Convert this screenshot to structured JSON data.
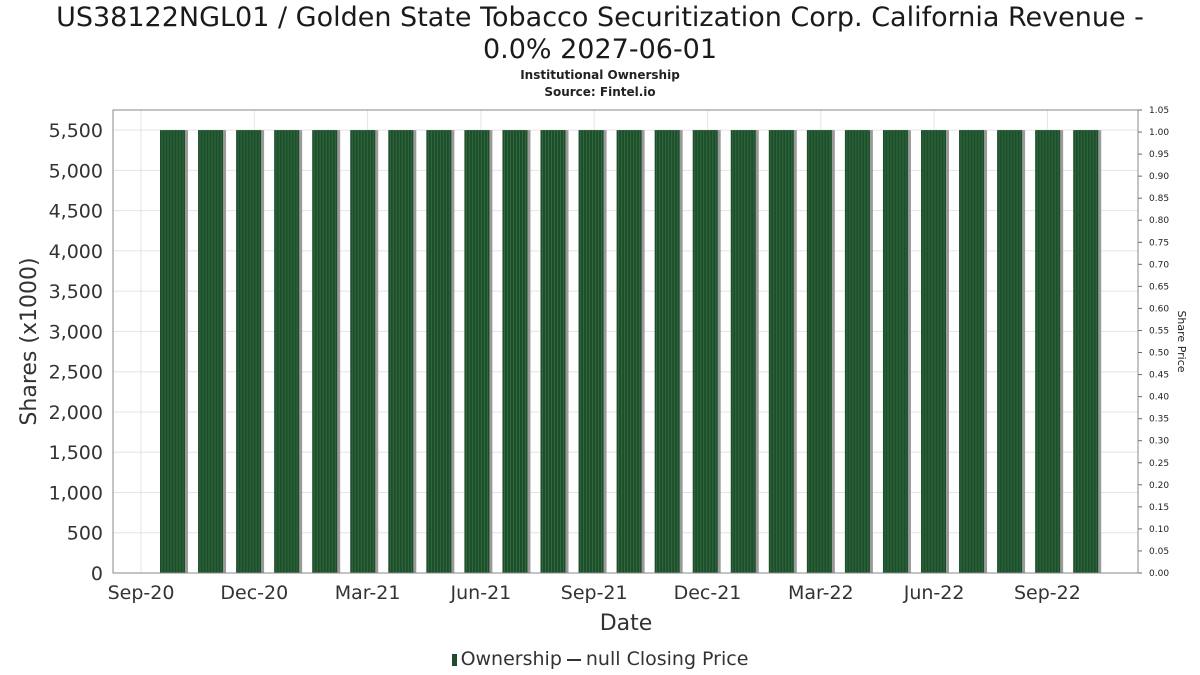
{
  "header": {
    "title_line1": "US38122NGL01 / Golden State Tobacco Securitization Corp. California Revenue -",
    "title_line2": "0.0% 2027-06-01",
    "subtitle1": "Institutional Ownership",
    "subtitle2": "Source: Fintel.io"
  },
  "legend": {
    "ownership": "Ownership",
    "price": "null Closing Price"
  },
  "colors": {
    "bar": "#1e4d2b",
    "bar_stripe": "#2f6b3d",
    "bar_shadow": "#9a9a9a",
    "grid": "#e4e4e4",
    "frame": "#888888"
  },
  "chart_data": {
    "type": "bar",
    "title": "US38122NGL01 / Golden State Tobacco Securitization Corp. California Revenue - 0.0% 2027-06-01",
    "subtitle": "Institutional Ownership",
    "xlabel": "Date",
    "ylabel": "Shares (x1000)",
    "y2label": "Share Price",
    "ylim": [
      0,
      5750
    ],
    "y2lim": [
      0,
      1.05
    ],
    "grid": true,
    "legend_position": "bottom",
    "yticks": [
      0,
      500,
      1000,
      1500,
      2000,
      2500,
      3000,
      3500,
      4000,
      4500,
      5000,
      5500
    ],
    "ytick_labels": [
      "0",
      "500",
      "1,000",
      "1,500",
      "2,000",
      "2,500",
      "3,000",
      "3,500",
      "4,000",
      "4,500",
      "5,000",
      "5,500"
    ],
    "y2tick_labels": [
      "0.00",
      "0.05",
      "0.10",
      "0.15",
      "0.20",
      "0.25",
      "0.30",
      "0.35",
      "0.40",
      "0.45",
      "0.50",
      "0.55",
      "0.60",
      "0.65",
      "0.70",
      "0.75",
      "0.80",
      "0.85",
      "0.90",
      "0.95",
      "1.00",
      "1.05"
    ],
    "xtick_labels": [
      "Sep-20",
      "Dec-20",
      "Mar-21",
      "Jun-21",
      "Sep-21",
      "Dec-21",
      "Mar-22",
      "Jun-22",
      "Sep-22"
    ],
    "series": [
      {
        "name": "Ownership",
        "values": [
          5500,
          5500,
          5500,
          5500,
          5500,
          5500,
          5500,
          5500,
          5500,
          5500,
          5500,
          5500,
          5500,
          5500,
          5500,
          5500,
          5500,
          5500,
          5500,
          5500,
          5500,
          5500,
          5500,
          5500,
          5500
        ]
      }
    ]
  }
}
